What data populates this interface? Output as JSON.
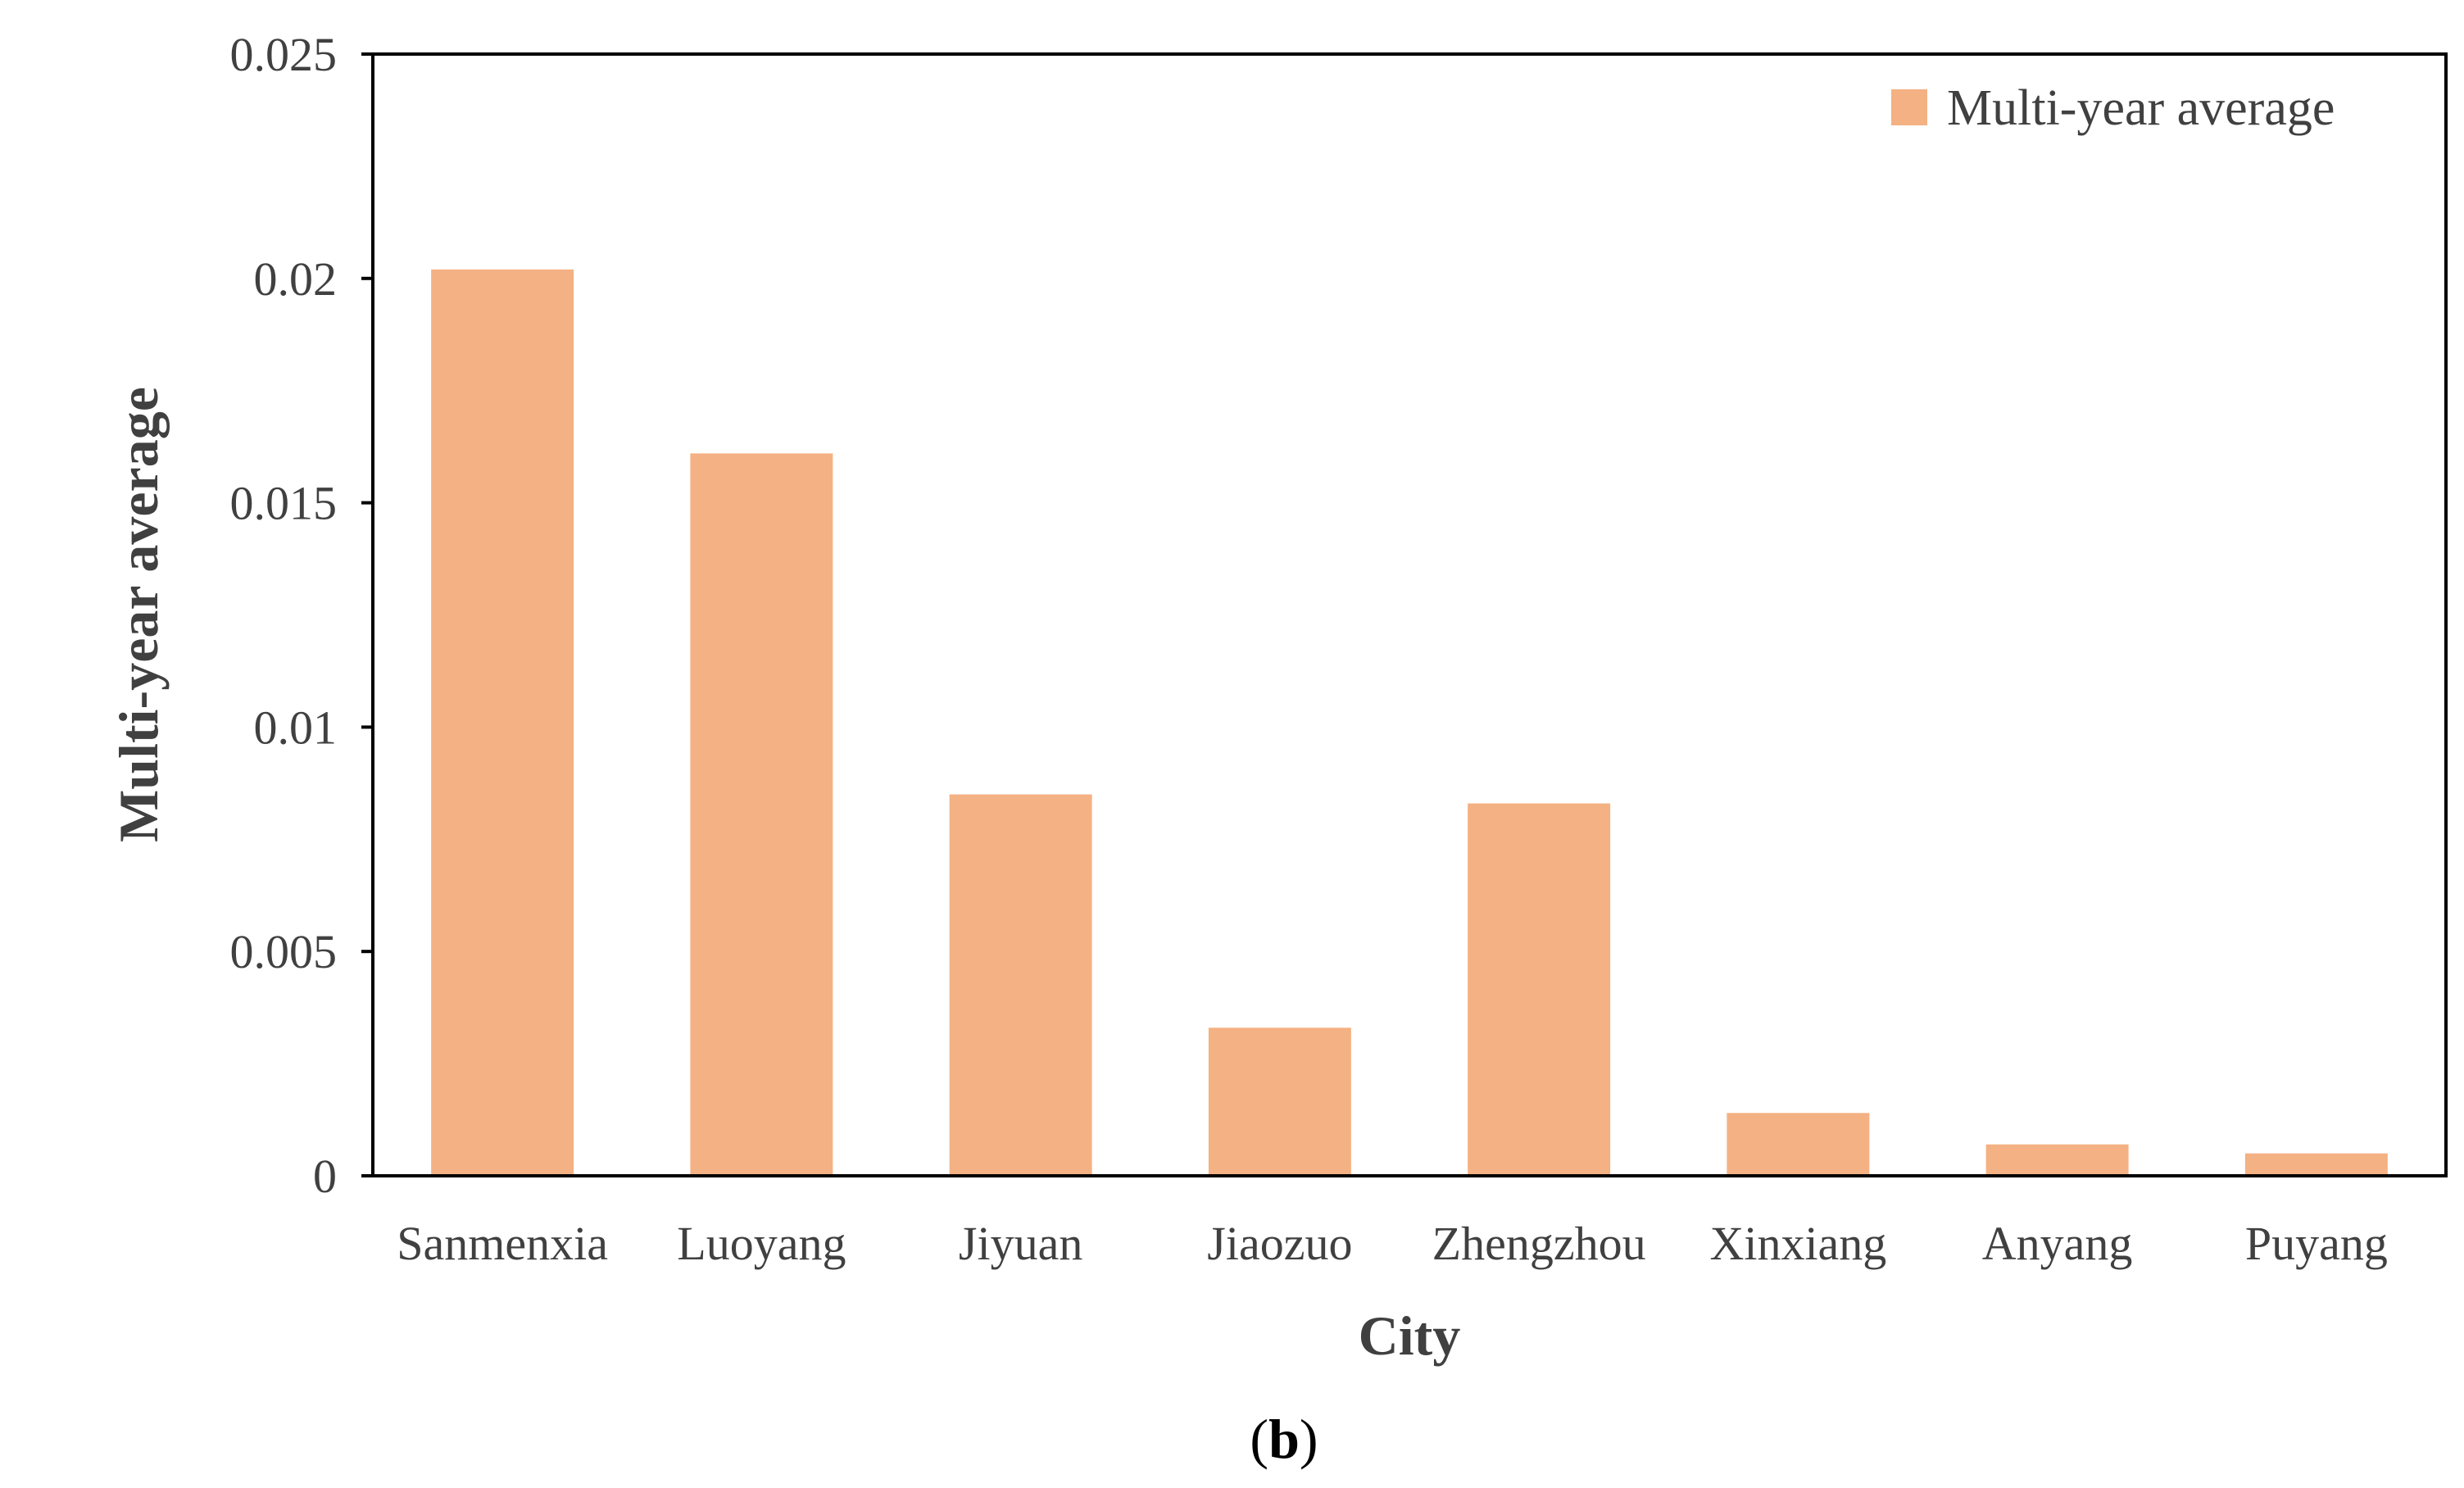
{
  "chart_data": {
    "type": "bar",
    "categories": [
      "Sanmenxia",
      "Luoyang",
      "Jiyuan",
      "Jiaozuo",
      "Zhengzhou",
      "Xinxiang",
      "Anyang",
      "Puyang"
    ],
    "series": [
      {
        "name": "Multi-year average",
        "values": [
          0.0202,
          0.0161,
          0.0085,
          0.0033,
          0.0083,
          0.0014,
          0.0007,
          0.0005
        ]
      }
    ],
    "xlabel": "City",
    "ylabel": "Multi-year average",
    "ylim": [
      0,
      0.025
    ],
    "yticks": [
      0,
      0.005,
      0.01,
      0.015,
      0.02,
      0.025
    ],
    "ytick_labels": [
      "0",
      "0.005",
      "0.01",
      "0.015",
      "0.02",
      "0.025"
    ],
    "bar_color": "#F4B183",
    "grid": false,
    "legend_position": "top-right"
  },
  "caption": {
    "open": "(",
    "letter": "b",
    "close": ")"
  }
}
